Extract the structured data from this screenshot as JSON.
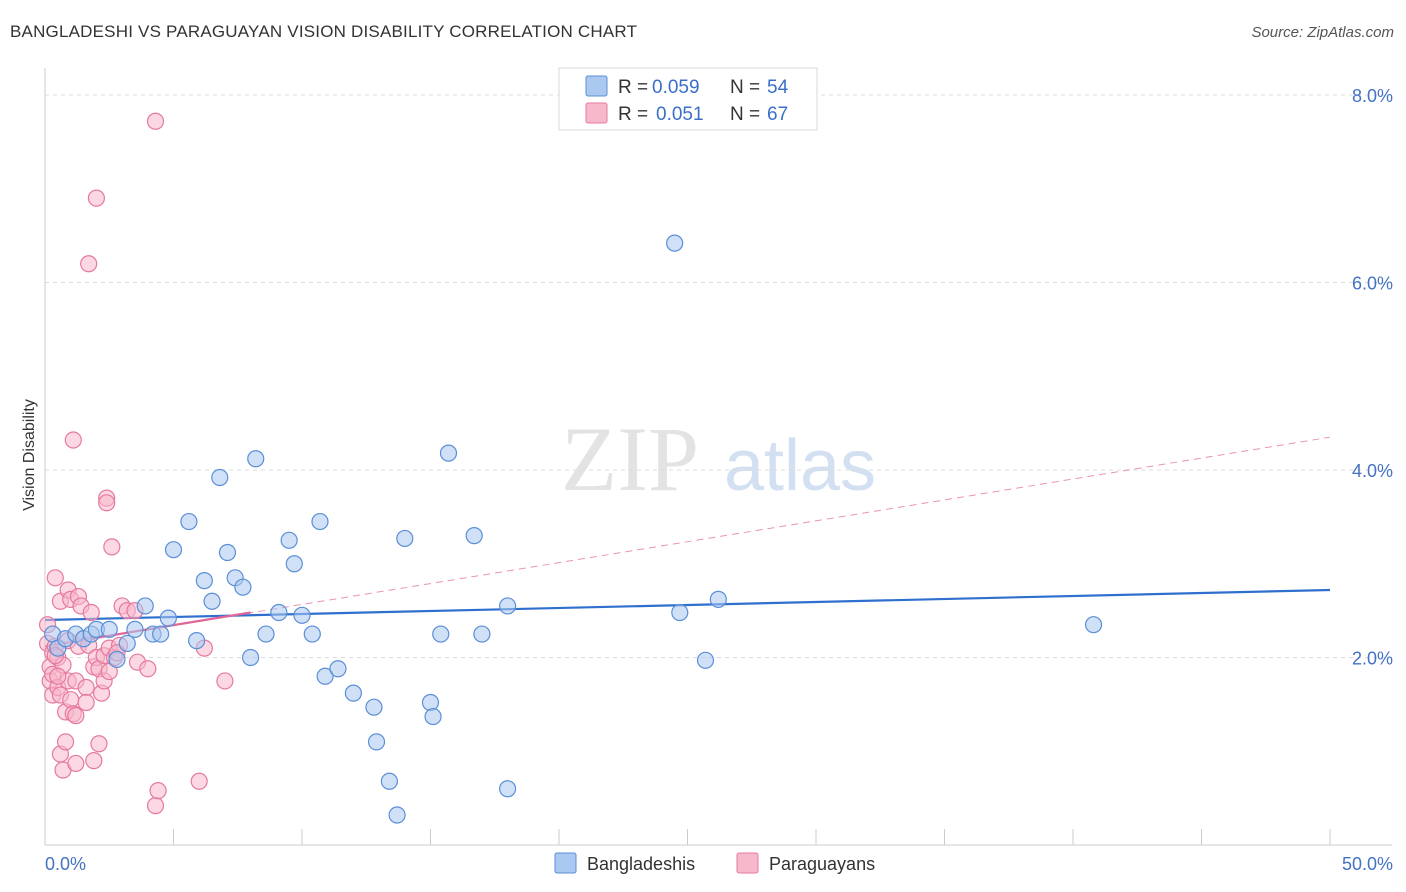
{
  "title": "BANGLADESHI VS PARAGUAYAN VISION DISABILITY CORRELATION CHART",
  "source": "Source: ZipAtlas.com",
  "watermark": {
    "zip": "ZIP",
    "atlas": "atlas"
  },
  "colors": {
    "blue_fill": "#aac8f0",
    "blue_stroke": "#5b8fd6",
    "blue_line": "#2f6fce",
    "pink_fill": "#f7b8cc",
    "pink_stroke": "#e67a9e",
    "pink_line": "#e0679a",
    "axis_label": "#4472c4",
    "grid": "#dddddd"
  },
  "legend": {
    "entries": [
      {
        "r_label": "R =",
        "r_value": "0.059",
        "n_label": "N =",
        "n_value": "54"
      },
      {
        "r_label": "R =",
        "r_value": "0.051",
        "n_label": "N =",
        "n_value": "67"
      }
    ]
  },
  "chart_data": {
    "type": "scatter",
    "title": "BANGLADESHI VS PARAGUAYAN VISION DISABILITY CORRELATION CHART",
    "xlabel": "",
    "ylabel": "Vision Disability",
    "xlim": [
      0,
      50
    ],
    "ylim": [
      0,
      8.0
    ],
    "x_tick_labels": [
      "0.0%",
      "50.0%"
    ],
    "y_ticks": [
      2.0,
      4.0,
      6.0,
      8.0
    ],
    "y_tick_labels": [
      "2.0%",
      "4.0%",
      "6.0%",
      "8.0%"
    ],
    "grid": "horizontal dashed",
    "legend_position": "top-center",
    "series": [
      {
        "name": "Bangladeshis",
        "trend": {
          "x": [
            0,
            50
          ],
          "y": [
            2.4,
            2.72
          ]
        },
        "points": [
          [
            0.3,
            2.25
          ],
          [
            0.5,
            2.1
          ],
          [
            0.8,
            2.2
          ],
          [
            1.2,
            2.25
          ],
          [
            1.5,
            2.2
          ],
          [
            1.8,
            2.25
          ],
          [
            2.0,
            2.3
          ],
          [
            2.5,
            2.3
          ],
          [
            2.8,
            1.98
          ],
          [
            3.2,
            2.15
          ],
          [
            3.5,
            2.3
          ],
          [
            3.9,
            2.55
          ],
          [
            4.2,
            2.25
          ],
          [
            4.5,
            2.25
          ],
          [
            4.8,
            2.42
          ],
          [
            5.0,
            3.15
          ],
          [
            5.6,
            3.45
          ],
          [
            5.9,
            2.18
          ],
          [
            6.2,
            2.82
          ],
          [
            6.5,
            2.6
          ],
          [
            6.8,
            3.92
          ],
          [
            7.1,
            3.12
          ],
          [
            7.4,
            2.85
          ],
          [
            7.7,
            2.75
          ],
          [
            8.0,
            2.0
          ],
          [
            8.2,
            4.12
          ],
          [
            8.6,
            2.25
          ],
          [
            9.1,
            2.48
          ],
          [
            9.5,
            3.25
          ],
          [
            9.7,
            3.0
          ],
          [
            10.0,
            2.45
          ],
          [
            10.4,
            2.25
          ],
          [
            10.7,
            3.45
          ],
          [
            10.9,
            1.8
          ],
          [
            11.4,
            1.88
          ],
          [
            12.0,
            1.62
          ],
          [
            12.8,
            1.47
          ],
          [
            12.9,
            1.1
          ],
          [
            13.4,
            0.68
          ],
          [
            13.7,
            0.32
          ],
          [
            14.0,
            3.27
          ],
          [
            15.0,
            1.52
          ],
          [
            15.1,
            1.37
          ],
          [
            15.4,
            2.25
          ],
          [
            15.7,
            4.18
          ],
          [
            16.7,
            3.3
          ],
          [
            17.0,
            2.25
          ],
          [
            18.0,
            2.55
          ],
          [
            18.0,
            0.6
          ],
          [
            24.5,
            6.42
          ],
          [
            24.7,
            2.48
          ],
          [
            25.7,
            1.97
          ],
          [
            26.2,
            2.62
          ],
          [
            40.8,
            2.35
          ]
        ]
      },
      {
        "name": "Paraguayans",
        "trend": {
          "x": [
            0,
            8.0
          ],
          "y": [
            2.12,
            2.48
          ]
        },
        "trend_extended": {
          "x": [
            0,
            50
          ],
          "y": [
            2.12,
            4.35
          ]
        },
        "points": [
          [
            0.1,
            2.35
          ],
          [
            0.1,
            2.15
          ],
          [
            0.2,
            1.9
          ],
          [
            0.2,
            1.75
          ],
          [
            0.3,
            1.6
          ],
          [
            0.3,
            2.05
          ],
          [
            0.3,
            1.82
          ],
          [
            0.4,
            2.85
          ],
          [
            0.4,
            2.12
          ],
          [
            0.5,
            1.68
          ],
          [
            0.5,
            2.0
          ],
          [
            0.6,
            2.6
          ],
          [
            0.6,
            1.6
          ],
          [
            0.6,
            0.97
          ],
          [
            0.7,
            0.8
          ],
          [
            0.7,
            1.92
          ],
          [
            0.8,
            1.1
          ],
          [
            0.8,
            1.42
          ],
          [
            0.9,
            1.75
          ],
          [
            0.9,
            2.72
          ],
          [
            0.9,
            2.18
          ],
          [
            1.0,
            1.55
          ],
          [
            1.0,
            2.62
          ],
          [
            1.1,
            1.4
          ],
          [
            1.1,
            4.32
          ],
          [
            1.2,
            0.87
          ],
          [
            1.2,
            1.75
          ],
          [
            1.3,
            2.12
          ],
          [
            1.3,
            2.65
          ],
          [
            1.4,
            2.55
          ],
          [
            1.5,
            2.2
          ],
          [
            1.6,
            1.68
          ],
          [
            1.6,
            1.52
          ],
          [
            1.7,
            2.13
          ],
          [
            1.7,
            6.2
          ],
          [
            1.8,
            2.48
          ],
          [
            1.9,
            1.9
          ],
          [
            1.9,
            0.9
          ],
          [
            2.0,
            2.0
          ],
          [
            2.0,
            6.9
          ],
          [
            2.1,
            1.08
          ],
          [
            2.1,
            1.88
          ],
          [
            2.2,
            1.62
          ],
          [
            2.3,
            2.02
          ],
          [
            2.3,
            1.75
          ],
          [
            2.4,
            3.7
          ],
          [
            2.4,
            3.65
          ],
          [
            2.5,
            1.85
          ],
          [
            2.5,
            2.1
          ],
          [
            2.6,
            3.18
          ],
          [
            2.7,
            2.0
          ],
          [
            2.9,
            2.13
          ],
          [
            3.0,
            2.55
          ],
          [
            3.2,
            2.5
          ],
          [
            3.5,
            2.5
          ],
          [
            3.6,
            1.95
          ],
          [
            4.0,
            1.88
          ],
          [
            4.3,
            7.72
          ],
          [
            4.3,
            0.42
          ],
          [
            4.4,
            0.58
          ],
          [
            6.0,
            0.68
          ],
          [
            6.2,
            2.1
          ],
          [
            7.0,
            1.75
          ],
          [
            0.4,
            2.02
          ],
          [
            0.5,
            1.8
          ],
          [
            1.2,
            1.38
          ],
          [
            2.8,
            2.05
          ]
        ]
      }
    ]
  }
}
